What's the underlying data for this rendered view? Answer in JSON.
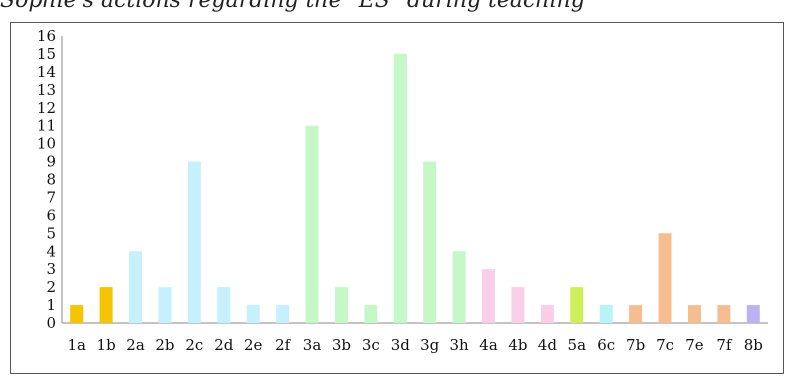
{
  "title": "Sophie's actions regarding the \"ES\" during teaching",
  "chart_data": {
    "type": "bar",
    "title": "Sophie's actions regarding the \"ES\" during teaching",
    "xlabel": "",
    "ylabel": "",
    "ylim": [
      0,
      16
    ],
    "grid": false,
    "categories": [
      "1a",
      "1b",
      "2a",
      "2b",
      "2c",
      "2d",
      "2e",
      "2f",
      "3a",
      "3b",
      "3c",
      "3d",
      "3g",
      "3h",
      "4a",
      "4b",
      "4d",
      "5a",
      "6c",
      "7b",
      "7c",
      "7e",
      "7f",
      "8b"
    ],
    "values": [
      1,
      2,
      4,
      2,
      9,
      2,
      1,
      1,
      11,
      2,
      1,
      15,
      9,
      4,
      3,
      2,
      1,
      2,
      1,
      1,
      5,
      1,
      1,
      1
    ],
    "colors": [
      "#f6c400",
      "#f6c400",
      "#c6f0fb",
      "#c6f0fb",
      "#c6f0fb",
      "#c6f0fb",
      "#c6f0fb",
      "#c6f0fb",
      "#c6f7c6",
      "#c6f7c6",
      "#c6f7c6",
      "#c6f7c6",
      "#c6f7c6",
      "#c6f7c6",
      "#f8cfe6",
      "#f8cfe6",
      "#f8cfe6",
      "#cdef5a",
      "#b6f4f8",
      "#f6be90",
      "#f6be90",
      "#f6be90",
      "#f6be90",
      "#bdb2f2"
    ]
  }
}
